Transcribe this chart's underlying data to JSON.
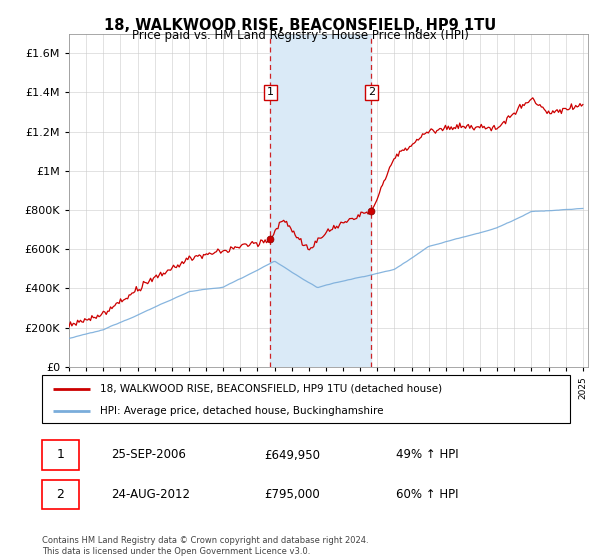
{
  "title": "18, WALKWOOD RISE, BEACONSFIELD, HP9 1TU",
  "subtitle": "Price paid vs. HM Land Registry's House Price Index (HPI)",
  "legend_line1": "18, WALKWOOD RISE, BEACONSFIELD, HP9 1TU (detached house)",
  "legend_line2": "HPI: Average price, detached house, Buckinghamshire",
  "transaction1_date": "25-SEP-2006",
  "transaction1_price": "£649,950",
  "transaction1_hpi": "49% ↑ HPI",
  "transaction2_date": "24-AUG-2012",
  "transaction2_price": "£795,000",
  "transaction2_hpi": "60% ↑ HPI",
  "footer": "Contains HM Land Registry data © Crown copyright and database right 2024.\nThis data is licensed under the Open Government Licence v3.0.",
  "property_color": "#cc0000",
  "hpi_color": "#7aaddb",
  "shaded_region_color": "#daeaf7",
  "marker1_year": 2006.75,
  "marker2_year": 2012.65,
  "marker1_price": 649950,
  "marker2_price": 795000,
  "label1_price": 1400000,
  "label2_price": 1400000,
  "ylim_max": 1700000,
  "ylim_min": 0,
  "year_start": 1995,
  "year_end": 2025
}
